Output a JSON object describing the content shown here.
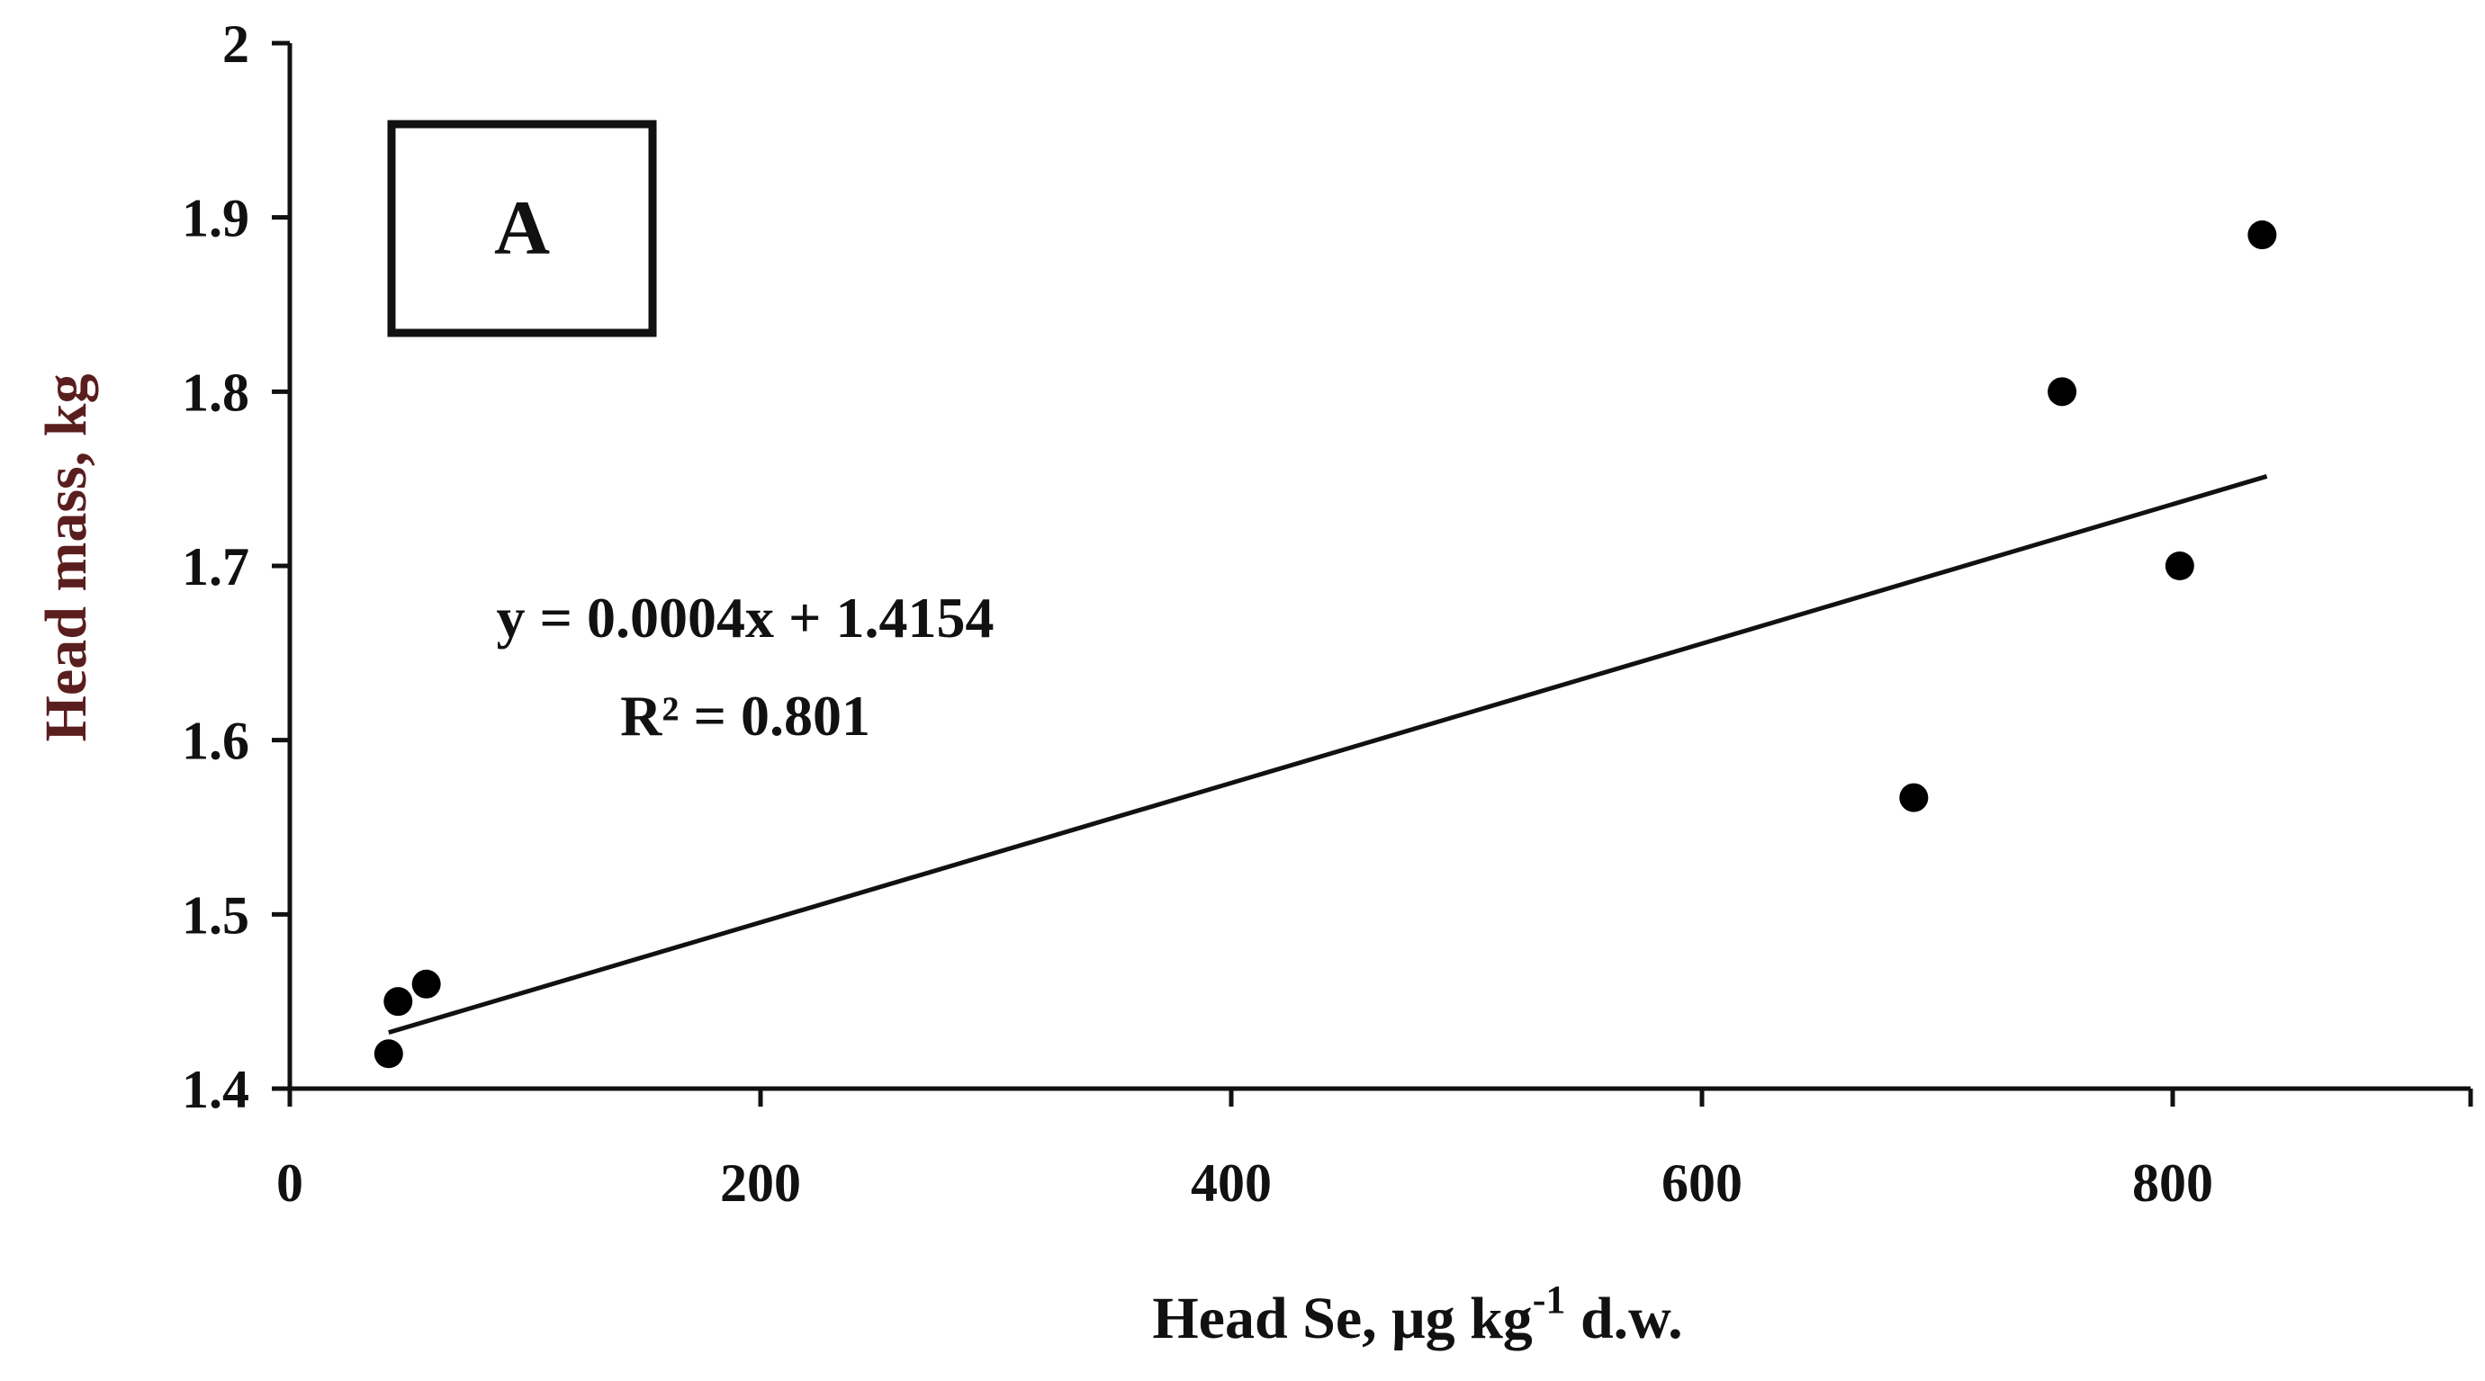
{
  "chart_data": {
    "type": "scatter",
    "xlabel": "Head Se, μg kg-1 d.w.",
    "xlabel_parts": {
      "main": "Head Se, μg kg",
      "sup": "-1",
      "tail": " d.w."
    },
    "ylabel": "Head mass, kg",
    "xlim": [
      0,
      930
    ],
    "ylim": [
      1.4,
      2.0
    ],
    "xticks": [
      "0",
      "200",
      "400",
      "600",
      "800"
    ],
    "xtick_values": [
      0,
      200,
      400,
      600,
      800
    ],
    "yticks": [
      "1.4",
      "1.5",
      "1.6",
      "1.7",
      "1.8",
      "1.9",
      "2"
    ],
    "ytick_values": [
      1.4,
      1.5,
      1.6,
      1.7,
      1.8,
      1.9,
      2.0
    ],
    "grid": false,
    "series": [
      {
        "points": [
          {
            "x": 42,
            "y": 1.42
          },
          {
            "x": 46,
            "y": 1.45
          },
          {
            "x": 58,
            "y": 1.46
          },
          {
            "x": 690,
            "y": 1.567
          },
          {
            "x": 753,
            "y": 1.8
          },
          {
            "x": 803,
            "y": 1.7
          },
          {
            "x": 838,
            "y": 1.89
          }
        ],
        "color": "#000000"
      }
    ],
    "trendline": {
      "slope": 0.0004,
      "intercept": 1.4154,
      "x_range": [
        42,
        840
      ],
      "equation": "y = 0.0004x + 1.4154",
      "r2_label": "R² = 0.801"
    },
    "panel_label": "A",
    "ylabel_color": "#5a1e1e"
  }
}
